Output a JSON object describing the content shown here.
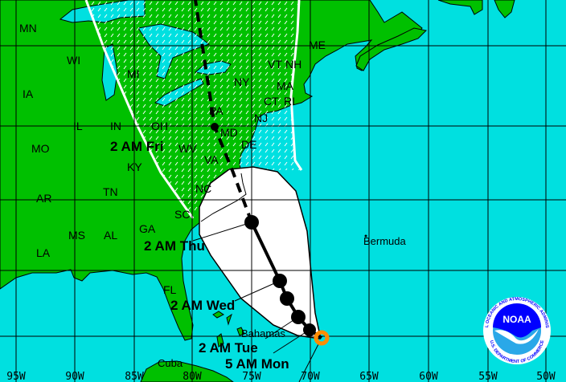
{
  "colors": {
    "ocean": "#00e0e0",
    "land": "#00c000",
    "cone": "#ffffff",
    "track": "#000000",
    "current_position": "#ff8c00",
    "watch_line": "#ffffff",
    "noaa_blue": "#0000ff"
  },
  "longitude_labels": [
    "95W",
    "90W",
    "85W",
    "80W",
    "75W",
    "70W",
    "65W",
    "60W",
    "55W",
    "50W"
  ],
  "states": [
    {
      "label": "MN"
    },
    {
      "label": "WI"
    },
    {
      "label": "MI"
    },
    {
      "label": "IA"
    },
    {
      "label": "IL"
    },
    {
      "label": "IN"
    },
    {
      "label": "OH"
    },
    {
      "label": "MO"
    },
    {
      "label": "KY"
    },
    {
      "label": "WV"
    },
    {
      "label": "VA"
    },
    {
      "label": "PA"
    },
    {
      "label": "NY"
    },
    {
      "label": "NJ"
    },
    {
      "label": "DE"
    },
    {
      "label": "MD"
    },
    {
      "label": "NC"
    },
    {
      "label": "TN"
    },
    {
      "label": "AR"
    },
    {
      "label": "MS"
    },
    {
      "label": "AL"
    },
    {
      "label": "GA"
    },
    {
      "label": "SC"
    },
    {
      "label": "FL"
    },
    {
      "label": "LA"
    },
    {
      "label": "ME"
    },
    {
      "label": "VT"
    },
    {
      "label": "NH"
    },
    {
      "label": "MA"
    },
    {
      "label": "CT"
    },
    {
      "label": "RI"
    }
  ],
  "places": {
    "bermuda": "Bermuda",
    "bahamas": "Bahamas",
    "cuba": "Cuba"
  },
  "forecast_times": {
    "mon": "5 AM Mon",
    "tue": "2 AM Tue",
    "wed": "2 AM Wed",
    "thu": "2 AM Thu",
    "fri": "2 AM Fri"
  },
  "logo": {
    "text": "NOAA",
    "ring_top": "NATIONAL OCEANIC AND ATMOSPHERIC ADMINISTRATION",
    "ring_bottom": "U.S. DEPARTMENT OF COMMERCE"
  }
}
